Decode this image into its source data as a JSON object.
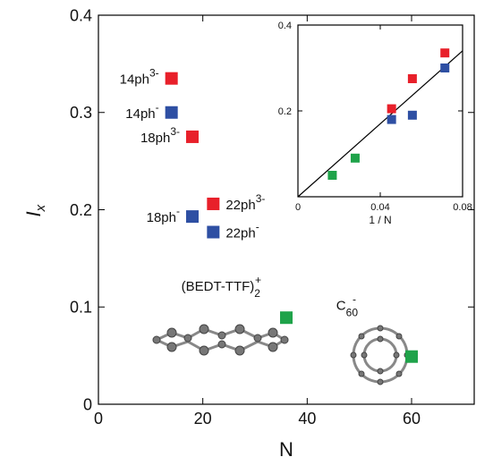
{
  "chart_data": [
    {
      "type": "scatter",
      "xlabel": "N",
      "ylabel": "I",
      "ylabel_sub": "x",
      "xlim": [
        0,
        72
      ],
      "ylim": [
        0,
        0.4
      ],
      "xticks": [
        0,
        20,
        40,
        60
      ],
      "yticks": [
        0,
        0.1,
        0.2,
        0.3,
        0.4
      ],
      "x": [
        14,
        14,
        18,
        18,
        22,
        22,
        36,
        60
      ],
      "values": [
        0.335,
        0.3,
        0.275,
        0.193,
        0.206,
        0.177,
        0.089,
        0.049
      ],
      "colors": [
        "#e8202a",
        "#2e4fa3",
        "#e8202a",
        "#2e4fa3",
        "#e8202a",
        "#2e4fa3",
        "#1fa34a",
        "#1fa34a"
      ],
      "point_labels": [
        {
          "text": "14ph",
          "sup": "3-"
        },
        {
          "text": "14ph",
          "sup": "-"
        },
        {
          "text": "18ph",
          "sup": "3-"
        },
        {
          "text": "18ph",
          "sup": "-"
        },
        {
          "text": "22ph",
          "sup": "3-"
        },
        {
          "text": "22ph",
          "sup": "-"
        },
        {
          "text": "(BEDT-TTF)",
          "sub": "2",
          "sup": "+"
        },
        {
          "text": "C",
          "sub": "60",
          "sup": "-"
        }
      ]
    },
    {
      "type": "scatter",
      "xlabel": "1 / N",
      "xlim": [
        0,
        0.08
      ],
      "ylim": [
        0,
        0.4
      ],
      "xticks": [
        0,
        0.04,
        0.08
      ],
      "yticks": [
        0.2,
        0.4
      ],
      "x": [
        0.0714,
        0.0714,
        0.0556,
        0.0556,
        0.0455,
        0.0455,
        0.0278,
        0.0167
      ],
      "values": [
        0.335,
        0.3,
        0.275,
        0.19,
        0.205,
        0.18,
        0.09,
        0.05
      ],
      "colors": [
        "#e8202a",
        "#2e4fa3",
        "#e8202a",
        "#2e4fa3",
        "#e8202a",
        "#2e4fa3",
        "#1fa34a",
        "#1fa34a"
      ],
      "fit": {
        "x": [
          0,
          0.08
        ],
        "values": [
          0,
          0.34
        ]
      }
    }
  ]
}
